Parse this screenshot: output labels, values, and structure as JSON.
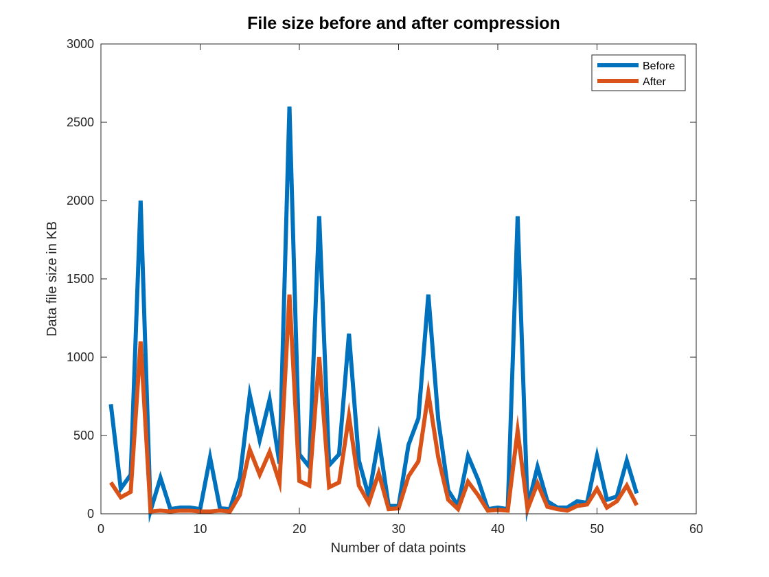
{
  "chart_data": {
    "type": "line",
    "title": "File size before and after compression",
    "xlabel": "Number of data points",
    "ylabel": "Data file size in KB",
    "xlim": [
      0,
      60
    ],
    "ylim": [
      0,
      3000
    ],
    "x_ticks": [
      0,
      10,
      20,
      30,
      40,
      50,
      60
    ],
    "y_ticks": [
      0,
      500,
      1000,
      1500,
      2000,
      2500,
      3000
    ],
    "grid": false,
    "legend_position": "top-right",
    "x": [
      1,
      2,
      3,
      4,
      5,
      6,
      7,
      8,
      9,
      10,
      11,
      12,
      13,
      14,
      15,
      16,
      17,
      18,
      19,
      20,
      21,
      22,
      23,
      24,
      25,
      26,
      27,
      28,
      29,
      30,
      31,
      32,
      33,
      34,
      35,
      36,
      37,
      38,
      39,
      40,
      41,
      42,
      43,
      44,
      45,
      46,
      47,
      48,
      49,
      50,
      51,
      52,
      53,
      54
    ],
    "series": [
      {
        "name": "Before",
        "color": "#0072BD",
        "values": [
          700,
          160,
          250,
          2000,
          20,
          230,
          30,
          40,
          40,
          30,
          360,
          35,
          30,
          230,
          760,
          470,
          730,
          320,
          2600,
          380,
          300,
          1900,
          310,
          380,
          1150,
          340,
          110,
          480,
          50,
          50,
          440,
          610,
          1400,
          600,
          150,
          50,
          370,
          220,
          30,
          40,
          30,
          1900,
          40,
          300,
          80,
          40,
          40,
          80,
          70,
          370,
          90,
          110,
          340,
          130
        ]
      },
      {
        "name": "After",
        "color": "#D95319",
        "values": [
          200,
          105,
          140,
          1100,
          15,
          20,
          15,
          20,
          20,
          15,
          15,
          20,
          15,
          120,
          410,
          250,
          395,
          200,
          1400,
          210,
          180,
          1000,
          170,
          200,
          625,
          180,
          70,
          260,
          30,
          35,
          240,
          335,
          770,
          360,
          90,
          30,
          205,
          120,
          20,
          25,
          20,
          530,
          30,
          195,
          45,
          30,
          20,
          50,
          60,
          160,
          40,
          80,
          180,
          55
        ]
      }
    ]
  }
}
